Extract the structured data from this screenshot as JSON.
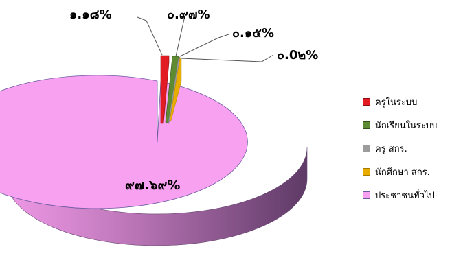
{
  "chart_data": {
    "type": "pie",
    "title": "",
    "categories": [
      "ครูในระบบ",
      "นักเรียนในระบบ",
      "ครู สกร.",
      "นักศึกษา สกร.",
      "ประชาชนทั่วไป"
    ],
    "values": [
      1.18,
      0.97,
      0.15,
      0.02,
      97.69
    ],
    "data_labels": [
      "๑.๑๘%",
      "๐.๙๗%",
      "๐.๑๕%",
      "๐.0๒%",
      "๙๗.๖๙%"
    ],
    "colors": [
      "#e31b23",
      "#5e8b32",
      "#9c9c9c",
      "#e8ad00",
      "#f7a1f0"
    ],
    "style": "3d exploded",
    "legend": "right"
  }
}
